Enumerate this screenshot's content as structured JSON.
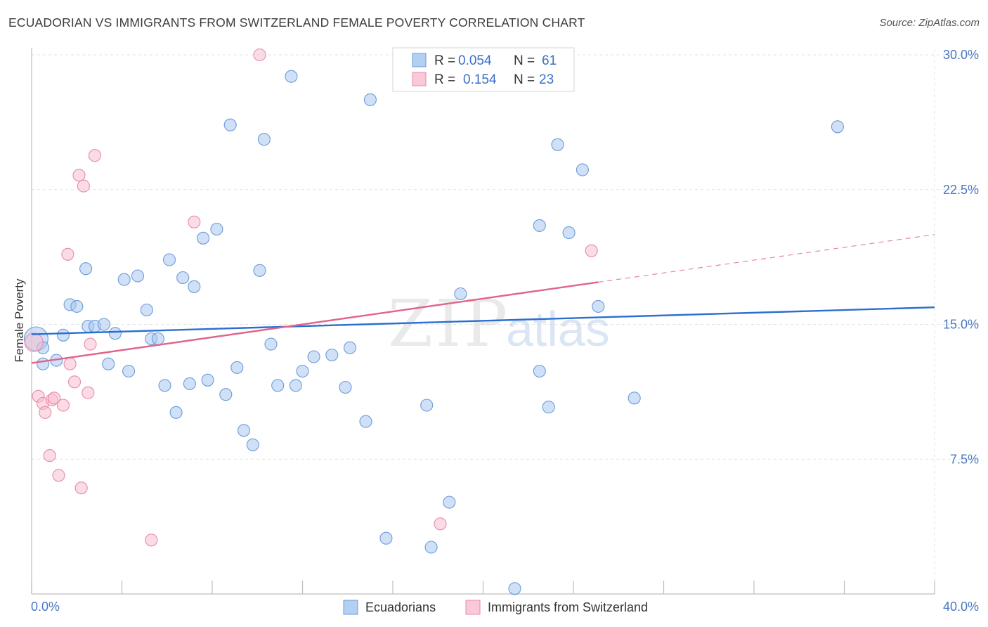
{
  "title": "ECUADORIAN VS IMMIGRANTS FROM SWITZERLAND FEMALE POVERTY CORRELATION CHART",
  "source": "Source: ZipAtlas.com",
  "watermark": {
    "zip": "ZIP",
    "atlas": "atlas"
  },
  "chart_data": {
    "type": "scatter",
    "xlabel": "",
    "ylabel": "Female Poverty",
    "xlim": [
      0,
      40
    ],
    "ylim": [
      0,
      31
    ],
    "x_tick_labels": {
      "min": "0.0%",
      "max": "40.0%"
    },
    "y_ticks": [
      {
        "value": 7.5,
        "label": "7.5%"
      },
      {
        "value": 15.0,
        "label": "15.0%"
      },
      {
        "value": 22.5,
        "label": "22.5%"
      },
      {
        "value": 30.0,
        "label": "30.0%"
      }
    ],
    "grid": true,
    "legend_position": "top-center",
    "stats": [
      {
        "r_label": "R =",
        "r_value": "0.054",
        "n_label": "N =",
        "n_value": "61"
      },
      {
        "r_label": "R =",
        "r_value": "0.154",
        "n_label": "N =",
        "n_value": "23"
      }
    ],
    "series": [
      {
        "name": "Ecuadorians",
        "color": "#a9c8f0",
        "stroke": "#6b9bd8",
        "line_color": "#2a6fd0",
        "trend": {
          "x0": 0,
          "y0": 14.45,
          "x1": 40,
          "y1": 15.95
        },
        "points": [
          [
            0.2,
            14.2
          ],
          [
            0.5,
            13.7
          ],
          [
            0.5,
            12.8
          ],
          [
            1.1,
            13.0
          ],
          [
            1.4,
            14.4
          ],
          [
            1.7,
            16.1
          ],
          [
            2.0,
            16.0
          ],
          [
            2.4,
            18.1
          ],
          [
            2.5,
            14.9
          ],
          [
            2.8,
            14.9
          ],
          [
            3.2,
            15.0
          ],
          [
            3.4,
            12.8
          ],
          [
            3.7,
            14.5
          ],
          [
            4.1,
            17.5
          ],
          [
            4.3,
            12.4
          ],
          [
            4.7,
            17.7
          ],
          [
            5.1,
            15.8
          ],
          [
            5.3,
            14.2
          ],
          [
            5.6,
            14.2
          ],
          [
            5.9,
            11.6
          ],
          [
            6.1,
            18.6
          ],
          [
            6.4,
            10.1
          ],
          [
            6.7,
            17.6
          ],
          [
            7.0,
            11.7
          ],
          [
            7.2,
            17.1
          ],
          [
            7.6,
            19.8
          ],
          [
            7.8,
            11.9
          ],
          [
            8.2,
            20.3
          ],
          [
            8.6,
            11.1
          ],
          [
            8.8,
            26.1
          ],
          [
            9.1,
            12.6
          ],
          [
            9.4,
            9.1
          ],
          [
            9.8,
            8.3
          ],
          [
            10.1,
            18.0
          ],
          [
            10.3,
            25.3
          ],
          [
            10.6,
            13.9
          ],
          [
            10.9,
            11.6
          ],
          [
            11.5,
            28.8
          ],
          [
            11.7,
            11.6
          ],
          [
            12.0,
            12.4
          ],
          [
            12.5,
            13.2
          ],
          [
            13.3,
            13.3
          ],
          [
            13.9,
            11.5
          ],
          [
            14.1,
            13.7
          ],
          [
            14.8,
            9.6
          ],
          [
            15.0,
            27.5
          ],
          [
            15.7,
            3.1
          ],
          [
            17.5,
            10.5
          ],
          [
            17.7,
            2.6
          ],
          [
            18.5,
            5.1
          ],
          [
            19.0,
            16.7
          ],
          [
            21.4,
            0.3
          ],
          [
            22.5,
            12.4
          ],
          [
            22.5,
            20.5
          ],
          [
            22.9,
            10.4
          ],
          [
            23.3,
            25.0
          ],
          [
            23.8,
            20.1
          ],
          [
            24.4,
            23.6
          ],
          [
            25.1,
            16.0
          ],
          [
            26.7,
            10.9
          ],
          [
            35.7,
            26.0
          ]
        ]
      },
      {
        "name": "Immigrants from Switzerland",
        "color": "#f7bfd0",
        "stroke": "#e88aa8",
        "line_color": "#e0648c",
        "trend": {
          "x0": 0,
          "y0": 12.85,
          "x1": 25.1,
          "y1": 17.35
        },
        "trend_dashed": {
          "x0": 25.1,
          "y0": 17.35,
          "x1": 40,
          "y1": 20.0
        },
        "points": [
          [
            0.1,
            14.0
          ],
          [
            0.3,
            11.0
          ],
          [
            0.5,
            10.6
          ],
          [
            0.6,
            10.1
          ],
          [
            0.8,
            7.7
          ],
          [
            0.9,
            10.8
          ],
          [
            1.0,
            10.9
          ],
          [
            1.2,
            6.6
          ],
          [
            1.4,
            10.5
          ],
          [
            1.6,
            18.9
          ],
          [
            1.7,
            12.8
          ],
          [
            1.9,
            11.8
          ],
          [
            2.1,
            23.3
          ],
          [
            2.2,
            5.9
          ],
          [
            2.3,
            22.7
          ],
          [
            2.5,
            11.2
          ],
          [
            2.6,
            13.9
          ],
          [
            2.8,
            24.4
          ],
          [
            5.3,
            3.0
          ],
          [
            7.2,
            20.7
          ],
          [
            10.1,
            30.0
          ],
          [
            18.1,
            3.9
          ],
          [
            24.8,
            19.1
          ]
        ]
      }
    ]
  }
}
